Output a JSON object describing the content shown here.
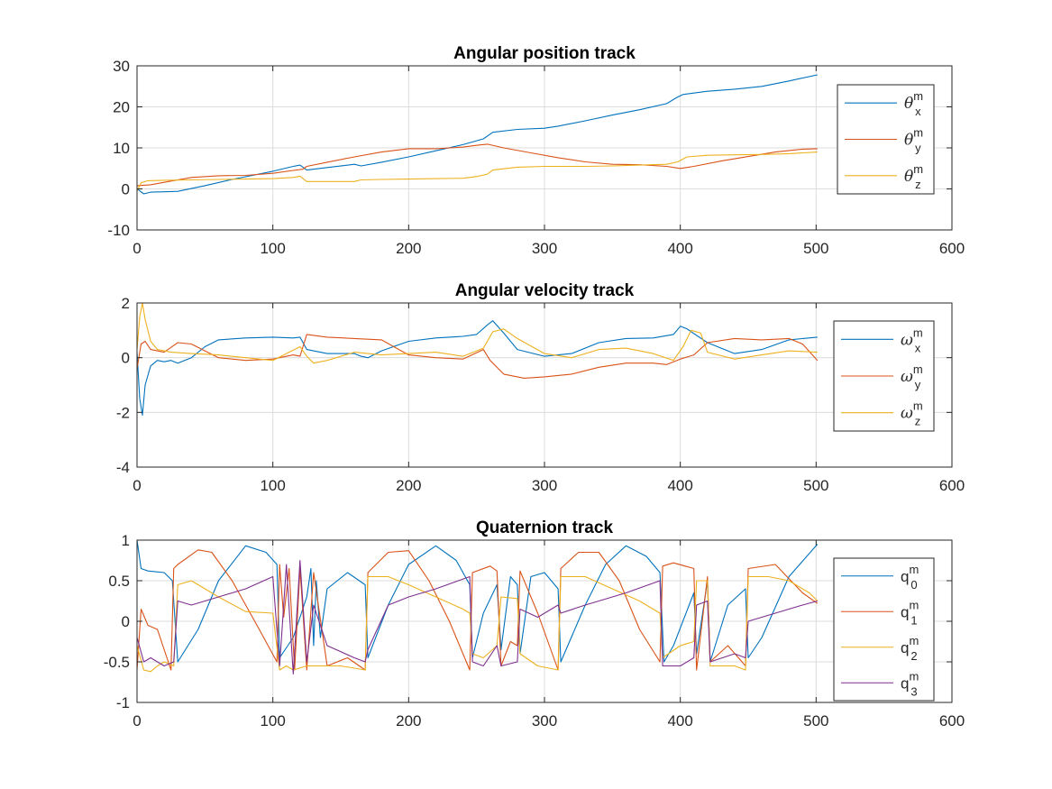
{
  "colors": {
    "blue": "#0072BD",
    "orange": "#D95319",
    "yellow": "#EDB120",
    "purple": "#7E2F8E"
  },
  "chart_data": [
    {
      "type": "line",
      "title": "Angular position track",
      "xlim": [
        0,
        600
      ],
      "ylim": [
        -10,
        30
      ],
      "xticks": [
        0,
        100,
        200,
        300,
        400,
        500,
        600
      ],
      "yticks": [
        -10,
        0,
        10,
        20,
        30
      ],
      "grid": true,
      "legend_position": "right",
      "series": [
        {
          "name": "θ",
          "sup": "m",
          "sub": "x",
          "color": "blue",
          "x": [
            0,
            5,
            10,
            20,
            30,
            50,
            70,
            100,
            115,
            120,
            125,
            140,
            160,
            165,
            180,
            200,
            220,
            240,
            255,
            262,
            280,
            300,
            310,
            330,
            350,
            370,
            390,
            397,
            402,
            420,
            440,
            460,
            480,
            501
          ],
          "y": [
            0,
            -1.2,
            -0.8,
            -0.7,
            -0.6,
            0.8,
            2.3,
            4.3,
            5.5,
            5.8,
            4.6,
            5.2,
            6.0,
            5.6,
            6.5,
            7.8,
            9.3,
            10.8,
            12.2,
            13.8,
            14.5,
            14.8,
            15.3,
            16.6,
            18.0,
            19.3,
            20.8,
            22.2,
            23.0,
            23.8,
            24.3,
            25.0,
            26.3,
            27.8
          ]
        },
        {
          "name": "θ",
          "sup": "m",
          "sub": "y",
          "color": "orange",
          "x": [
            0,
            5,
            10,
            20,
            40,
            60,
            80,
            100,
            115,
            122,
            125,
            140,
            160,
            180,
            200,
            220,
            240,
            252,
            258,
            270,
            290,
            310,
            330,
            350,
            370,
            390,
            400,
            410,
            430,
            450,
            470,
            490,
            501
          ],
          "y": [
            0.8,
            0.9,
            1.0,
            1.6,
            2.8,
            3.2,
            3.3,
            3.8,
            4.5,
            4.8,
            5.5,
            6.5,
            7.8,
            9.0,
            9.8,
            9.8,
            10.2,
            10.7,
            10.9,
            10.0,
            8.8,
            7.6,
            6.6,
            6.0,
            5.9,
            5.5,
            5.0,
            5.5,
            6.8,
            7.9,
            9.0,
            9.7,
            9.8
          ]
        },
        {
          "name": "θ",
          "sup": "m",
          "sub": "z",
          "color": "yellow",
          "x": [
            0,
            3,
            8,
            20,
            40,
            60,
            80,
            100,
            115,
            120,
            125,
            140,
            160,
            165,
            180,
            200,
            220,
            240,
            250,
            258,
            262,
            280,
            300,
            330,
            350,
            370,
            390,
            398,
            405,
            420,
            440,
            460,
            480,
            501
          ],
          "y": [
            -0.5,
            1.5,
            2.0,
            2.1,
            2.2,
            2.3,
            2.4,
            2.5,
            2.8,
            3.1,
            1.8,
            1.8,
            1.8,
            2.2,
            2.3,
            2.4,
            2.5,
            2.6,
            3.0,
            3.6,
            4.6,
            5.3,
            5.5,
            5.5,
            5.6,
            5.8,
            6.0,
            6.6,
            7.8,
            8.2,
            8.3,
            8.4,
            8.6,
            9.0
          ]
        }
      ]
    },
    {
      "type": "line",
      "title": "Angular velocity track",
      "xlim": [
        0,
        600
      ],
      "ylim": [
        -4,
        2
      ],
      "xticks": [
        0,
        100,
        200,
        300,
        400,
        500,
        600
      ],
      "yticks": [
        -4,
        -2,
        0,
        2
      ],
      "grid": true,
      "legend_position": "right",
      "series": [
        {
          "name": "ω",
          "sup": "m",
          "sub": "x",
          "color": "blue",
          "x": [
            0,
            2,
            4,
            6,
            10,
            15,
            20,
            25,
            30,
            40,
            50,
            60,
            80,
            100,
            115,
            120,
            125,
            140,
            160,
            165,
            170,
            180,
            200,
            220,
            240,
            250,
            258,
            262,
            270,
            280,
            300,
            320,
            340,
            360,
            380,
            395,
            400,
            405,
            420,
            440,
            460,
            480,
            501
          ],
          "y": [
            0.2,
            -1.5,
            -2.1,
            -1.0,
            -0.3,
            -0.1,
            -0.15,
            -0.1,
            -0.2,
            0.0,
            0.4,
            0.65,
            0.72,
            0.75,
            0.72,
            0.75,
            0.3,
            0.15,
            0.15,
            0.05,
            0.0,
            0.25,
            0.6,
            0.72,
            0.78,
            0.85,
            1.2,
            1.35,
            0.9,
            0.3,
            0.05,
            0.15,
            0.55,
            0.7,
            0.72,
            0.85,
            1.15,
            1.05,
            0.55,
            0.15,
            0.3,
            0.65,
            0.75
          ]
        },
        {
          "name": "ω",
          "sup": "m",
          "sub": "y",
          "color": "orange",
          "x": [
            0,
            3,
            6,
            10,
            20,
            30,
            40,
            60,
            80,
            100,
            115,
            120,
            125,
            140,
            160,
            180,
            200,
            220,
            240,
            255,
            260,
            270,
            285,
            300,
            320,
            340,
            360,
            380,
            390,
            400,
            410,
            420,
            440,
            460,
            480,
            490,
            501
          ],
          "y": [
            -0.4,
            0.5,
            0.6,
            0.3,
            0.2,
            0.55,
            0.5,
            0.0,
            -0.1,
            -0.05,
            0.1,
            0.05,
            0.85,
            0.75,
            0.7,
            0.65,
            0.1,
            0.0,
            -0.05,
            0.3,
            -0.1,
            -0.6,
            -0.75,
            -0.7,
            -0.6,
            -0.35,
            -0.2,
            -0.2,
            -0.25,
            -0.05,
            0.1,
            0.55,
            0.7,
            0.65,
            0.7,
            0.5,
            -0.1
          ]
        },
        {
          "name": "ω",
          "sup": "m",
          "sub": "z",
          "color": "yellow",
          "x": [
            0,
            2,
            4,
            6,
            10,
            15,
            25,
            40,
            60,
            80,
            100,
            110,
            120,
            125,
            130,
            140,
            160,
            180,
            200,
            220,
            240,
            255,
            262,
            270,
            280,
            300,
            320,
            340,
            360,
            380,
            395,
            402,
            408,
            415,
            420,
            440,
            460,
            480,
            501
          ],
          "y": [
            0.3,
            1.5,
            2.0,
            1.4,
            0.6,
            0.3,
            0.2,
            0.15,
            0.1,
            0.0,
            -0.1,
            0.15,
            0.4,
            0.05,
            -0.2,
            -0.1,
            0.2,
            0.1,
            0.15,
            0.2,
            0.05,
            0.35,
            0.95,
            1.05,
            0.7,
            0.15,
            0.0,
            0.3,
            0.35,
            0.15,
            -0.1,
            0.4,
            1.0,
            0.9,
            0.2,
            -0.05,
            0.1,
            0.25,
            0.2
          ]
        }
      ]
    },
    {
      "type": "line",
      "title": "Quaternion track",
      "xlim": [
        0,
        600
      ],
      "ylim": [
        -1,
        1
      ],
      "xticks": [
        0,
        100,
        200,
        300,
        400,
        500,
        600
      ],
      "yticks": [
        -1,
        -0.5,
        0,
        0.5,
        1
      ],
      "grid": true,
      "legend_position": "right",
      "series": [
        {
          "name": "q",
          "sup": "m",
          "sub": "0",
          "color": "blue",
          "x": [
            0,
            3,
            8,
            20,
            26,
            30,
            45,
            60,
            80,
            95,
            103,
            105,
            115,
            125,
            128,
            130,
            132,
            135,
            140,
            155,
            168,
            170,
            185,
            200,
            220,
            235,
            245,
            247,
            255,
            265,
            268,
            275,
            280,
            282,
            290,
            300,
            310,
            312,
            330,
            345,
            360,
            375,
            385,
            388,
            395,
            410,
            412,
            420,
            422,
            435,
            448,
            450,
            460,
            480,
            501
          ],
          "y": [
            1.0,
            0.65,
            0.62,
            0.6,
            0.5,
            -0.5,
            -0.1,
            0.5,
            0.93,
            0.85,
            0.7,
            -0.45,
            -0.2,
            0.3,
            0.65,
            -0.3,
            0.5,
            -0.2,
            0.4,
            0.6,
            0.45,
            -0.45,
            0.2,
            0.7,
            0.93,
            0.75,
            0.45,
            -0.45,
            0.1,
            0.45,
            -0.35,
            0.55,
            0.45,
            -0.4,
            0.55,
            0.6,
            0.4,
            -0.5,
            0.2,
            0.7,
            0.93,
            0.8,
            0.6,
            -0.5,
            -0.3,
            0.35,
            -0.4,
            0.5,
            -0.5,
            0.2,
            0.4,
            -0.45,
            -0.2,
            0.55,
            0.95
          ]
        },
        {
          "name": "q",
          "sup": "m",
          "sub": "1",
          "color": "orange",
          "x": [
            0,
            3,
            8,
            15,
            25,
            27,
            30,
            45,
            55,
            70,
            90,
            103,
            105,
            108,
            112,
            116,
            120,
            125,
            130,
            140,
            155,
            168,
            170,
            185,
            200,
            215,
            230,
            245,
            247,
            260,
            265,
            268,
            275,
            280,
            282,
            295,
            310,
            312,
            325,
            340,
            355,
            370,
            385,
            387,
            395,
            410,
            412,
            420,
            422,
            435,
            448,
            450,
            470,
            490,
            501
          ],
          "y": [
            -0.6,
            0.15,
            -0.05,
            -0.1,
            -0.6,
            0.65,
            0.7,
            0.88,
            0.85,
            0.5,
            -0.1,
            -0.5,
            0.7,
            0.05,
            0.65,
            -0.6,
            0.65,
            -0.6,
            0.6,
            -0.55,
            -0.45,
            -0.6,
            0.6,
            0.85,
            0.87,
            0.5,
            0.0,
            -0.6,
            0.6,
            0.68,
            0.62,
            -0.55,
            -0.25,
            -0.3,
            0.62,
            0.1,
            -0.6,
            0.65,
            0.85,
            0.85,
            0.5,
            -0.1,
            -0.5,
            0.68,
            0.72,
            0.65,
            -0.6,
            0.55,
            -0.5,
            -0.3,
            -0.55,
            0.65,
            0.7,
            0.35,
            0.22
          ]
        },
        {
          "name": "q",
          "sup": "m",
          "sub": "2",
          "color": "yellow",
          "x": [
            0,
            5,
            10,
            15,
            20,
            27,
            30,
            40,
            60,
            80,
            100,
            105,
            110,
            115,
            125,
            135,
            150,
            168,
            170,
            185,
            200,
            220,
            240,
            245,
            247,
            255,
            265,
            268,
            280,
            282,
            295,
            310,
            312,
            330,
            350,
            370,
            385,
            387,
            400,
            410,
            412,
            420,
            422,
            440,
            448,
            450,
            465,
            480,
            495,
            501
          ],
          "y": [
            -0.3,
            -0.6,
            -0.62,
            -0.55,
            -0.5,
            -0.55,
            0.45,
            0.5,
            0.3,
            0.12,
            0.1,
            -0.6,
            -0.55,
            -0.6,
            -0.55,
            -0.55,
            -0.55,
            -0.6,
            0.55,
            0.55,
            0.45,
            0.3,
            0.15,
            0.1,
            -0.4,
            -0.45,
            -0.3,
            0.3,
            0.28,
            -0.4,
            -0.55,
            -0.6,
            0.55,
            0.55,
            0.4,
            0.25,
            0.1,
            -0.45,
            -0.3,
            -0.25,
            0.5,
            0.5,
            -0.55,
            -0.55,
            -0.6,
            0.55,
            0.55,
            0.5,
            0.35,
            0.25
          ]
        },
        {
          "name": "q",
          "sup": "m",
          "sub": "3",
          "color": "purple",
          "x": [
            0,
            5,
            10,
            20,
            27,
            30,
            40,
            60,
            80,
            100,
            105,
            110,
            115,
            120,
            125,
            130,
            140,
            160,
            168,
            170,
            185,
            200,
            220,
            245,
            247,
            255,
            265,
            268,
            280,
            282,
            295,
            310,
            312,
            330,
            360,
            385,
            387,
            400,
            410,
            412,
            420,
            422,
            440,
            448,
            450,
            470,
            490,
            501
          ],
          "y": [
            -0.2,
            -0.5,
            -0.45,
            -0.55,
            -0.5,
            0.25,
            0.2,
            0.3,
            0.4,
            0.55,
            -0.55,
            0.7,
            -0.65,
            0.75,
            -0.5,
            0.2,
            -0.3,
            -0.45,
            -0.5,
            -0.35,
            0.2,
            0.3,
            0.4,
            0.55,
            -0.5,
            -0.55,
            -0.3,
            -0.55,
            -0.5,
            0.15,
            0.05,
            0.2,
            0.1,
            0.2,
            0.35,
            0.5,
            -0.55,
            -0.55,
            -0.45,
            0.2,
            0.25,
            -0.5,
            -0.4,
            -0.45,
            0.0,
            0.1,
            0.2,
            0.25
          ]
        }
      ]
    }
  ]
}
